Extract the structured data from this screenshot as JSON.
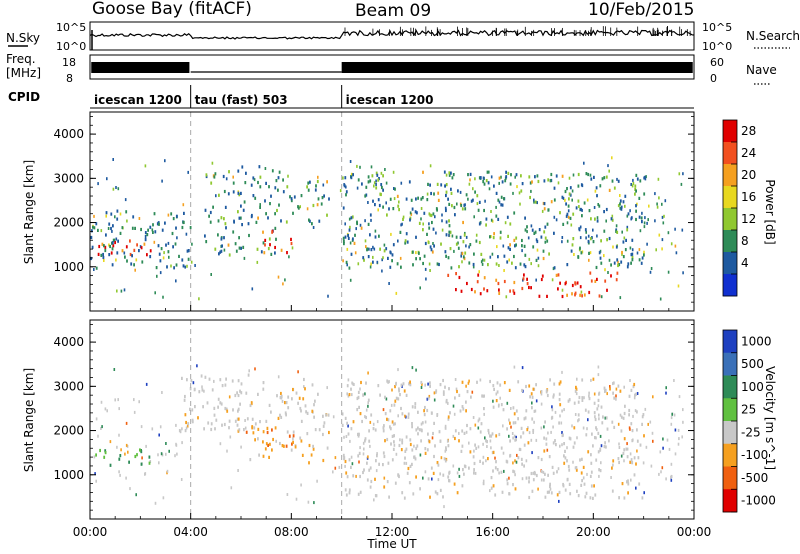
{
  "header": {
    "station": "Goose Bay (fitACF)",
    "beam": "Beam 09",
    "date": "10/Feb/2015"
  },
  "strips": {
    "nsky_label": "N.Sky",
    "nsearch_label": "N.Search",
    "nsky_ticks": [
      "10^5",
      "10^0"
    ],
    "nsearch_ticks": [
      "10^5",
      "10^0"
    ],
    "freq_label_1": "Freq.",
    "freq_label_2": "[MHz]",
    "freq_ticks": [
      "18",
      "8"
    ],
    "nave_label": "Nave",
    "nave_ticks": [
      "60",
      "0"
    ],
    "cpid_label": "CPID",
    "cpid_segments": [
      {
        "name": "icescan 1200",
        "start_hour": 0,
        "end_hour": 4
      },
      {
        "name": "tau (fast) 503",
        "start_hour": 4,
        "end_hour": 10
      },
      {
        "name": "icescan 1200",
        "start_hour": 10,
        "end_hour": 24
      }
    ]
  },
  "chart_data": [
    {
      "type": "heatmap",
      "name": "power",
      "ylabel": "Slant Range [km]",
      "xlim_hours": [
        0,
        24
      ],
      "ylim_km": [
        0,
        4500
      ],
      "yticks": [
        1000,
        2000,
        3000,
        4000
      ],
      "colorbar_label": "Power [dB]",
      "colorbar_ticks": [
        "28",
        "24",
        "20",
        "16",
        "12",
        "8",
        "4"
      ],
      "colorbar_colors": [
        "#e00000",
        "#f25020",
        "#f5a020",
        "#e8d820",
        "#90c830",
        "#2e8b57",
        "#1e5aa0",
        "#1030d0"
      ],
      "features": [
        {
          "hours": [
            0,
            2.5
          ],
          "km": [
            1250,
            1650
          ],
          "level": "high"
        },
        {
          "hours": [
            0,
            4
          ],
          "km": [
            1000,
            2300
          ],
          "level": "low"
        },
        {
          "hours": [
            4.5,
            7.5
          ],
          "km": [
            1300,
            3300
          ],
          "level": "mid"
        },
        {
          "hours": [
            6.8,
            8.0
          ],
          "km": [
            1300,
            1900
          ],
          "level": "high"
        },
        {
          "hours": [
            7.5,
            9.5
          ],
          "km": [
            2000,
            3000
          ],
          "level": "mid"
        },
        {
          "hours": [
            10,
            22
          ],
          "km": [
            1000,
            3200
          ],
          "level": "mid"
        },
        {
          "hours": [
            14,
            21
          ],
          "km": [
            350,
            900
          ],
          "level": "high"
        }
      ]
    },
    {
      "type": "heatmap",
      "name": "velocity",
      "ylabel": "Slant Range [km]",
      "xlabel": "Time UT",
      "xlim_hours": [
        0,
        24
      ],
      "xticks": [
        "00:00",
        "04:00",
        "08:00",
        "12:00",
        "16:00",
        "20:00",
        "00:00"
      ],
      "ylim_km": [
        0,
        4500
      ],
      "yticks": [
        1000,
        2000,
        3000,
        4000
      ],
      "colorbar_label": "Velocity [m s^-1]",
      "colorbar_ticks": [
        "1000",
        "500",
        "100",
        "25",
        "-25",
        "-100",
        "-500",
        "-1000"
      ],
      "colorbar_colors": [
        "#1e40c0",
        "#3a70b8",
        "#2e8b57",
        "#60c040",
        "#c8c8c8",
        "#f5a020",
        "#f06010",
        "#e00000"
      ],
      "features": [
        {
          "hours": [
            0,
            2.5
          ],
          "km": [
            1250,
            1650
          ],
          "level": "green"
        },
        {
          "hours": [
            6.0,
            9.5
          ],
          "km": [
            1300,
            2100
          ],
          "level": "orange"
        },
        {
          "hours": [
            3.5,
            9.5
          ],
          "km": [
            2000,
            3300
          ],
          "level": "gray"
        },
        {
          "hours": [
            10,
            22
          ],
          "km": [
            500,
            3200
          ],
          "level": "gray"
        }
      ]
    }
  ]
}
